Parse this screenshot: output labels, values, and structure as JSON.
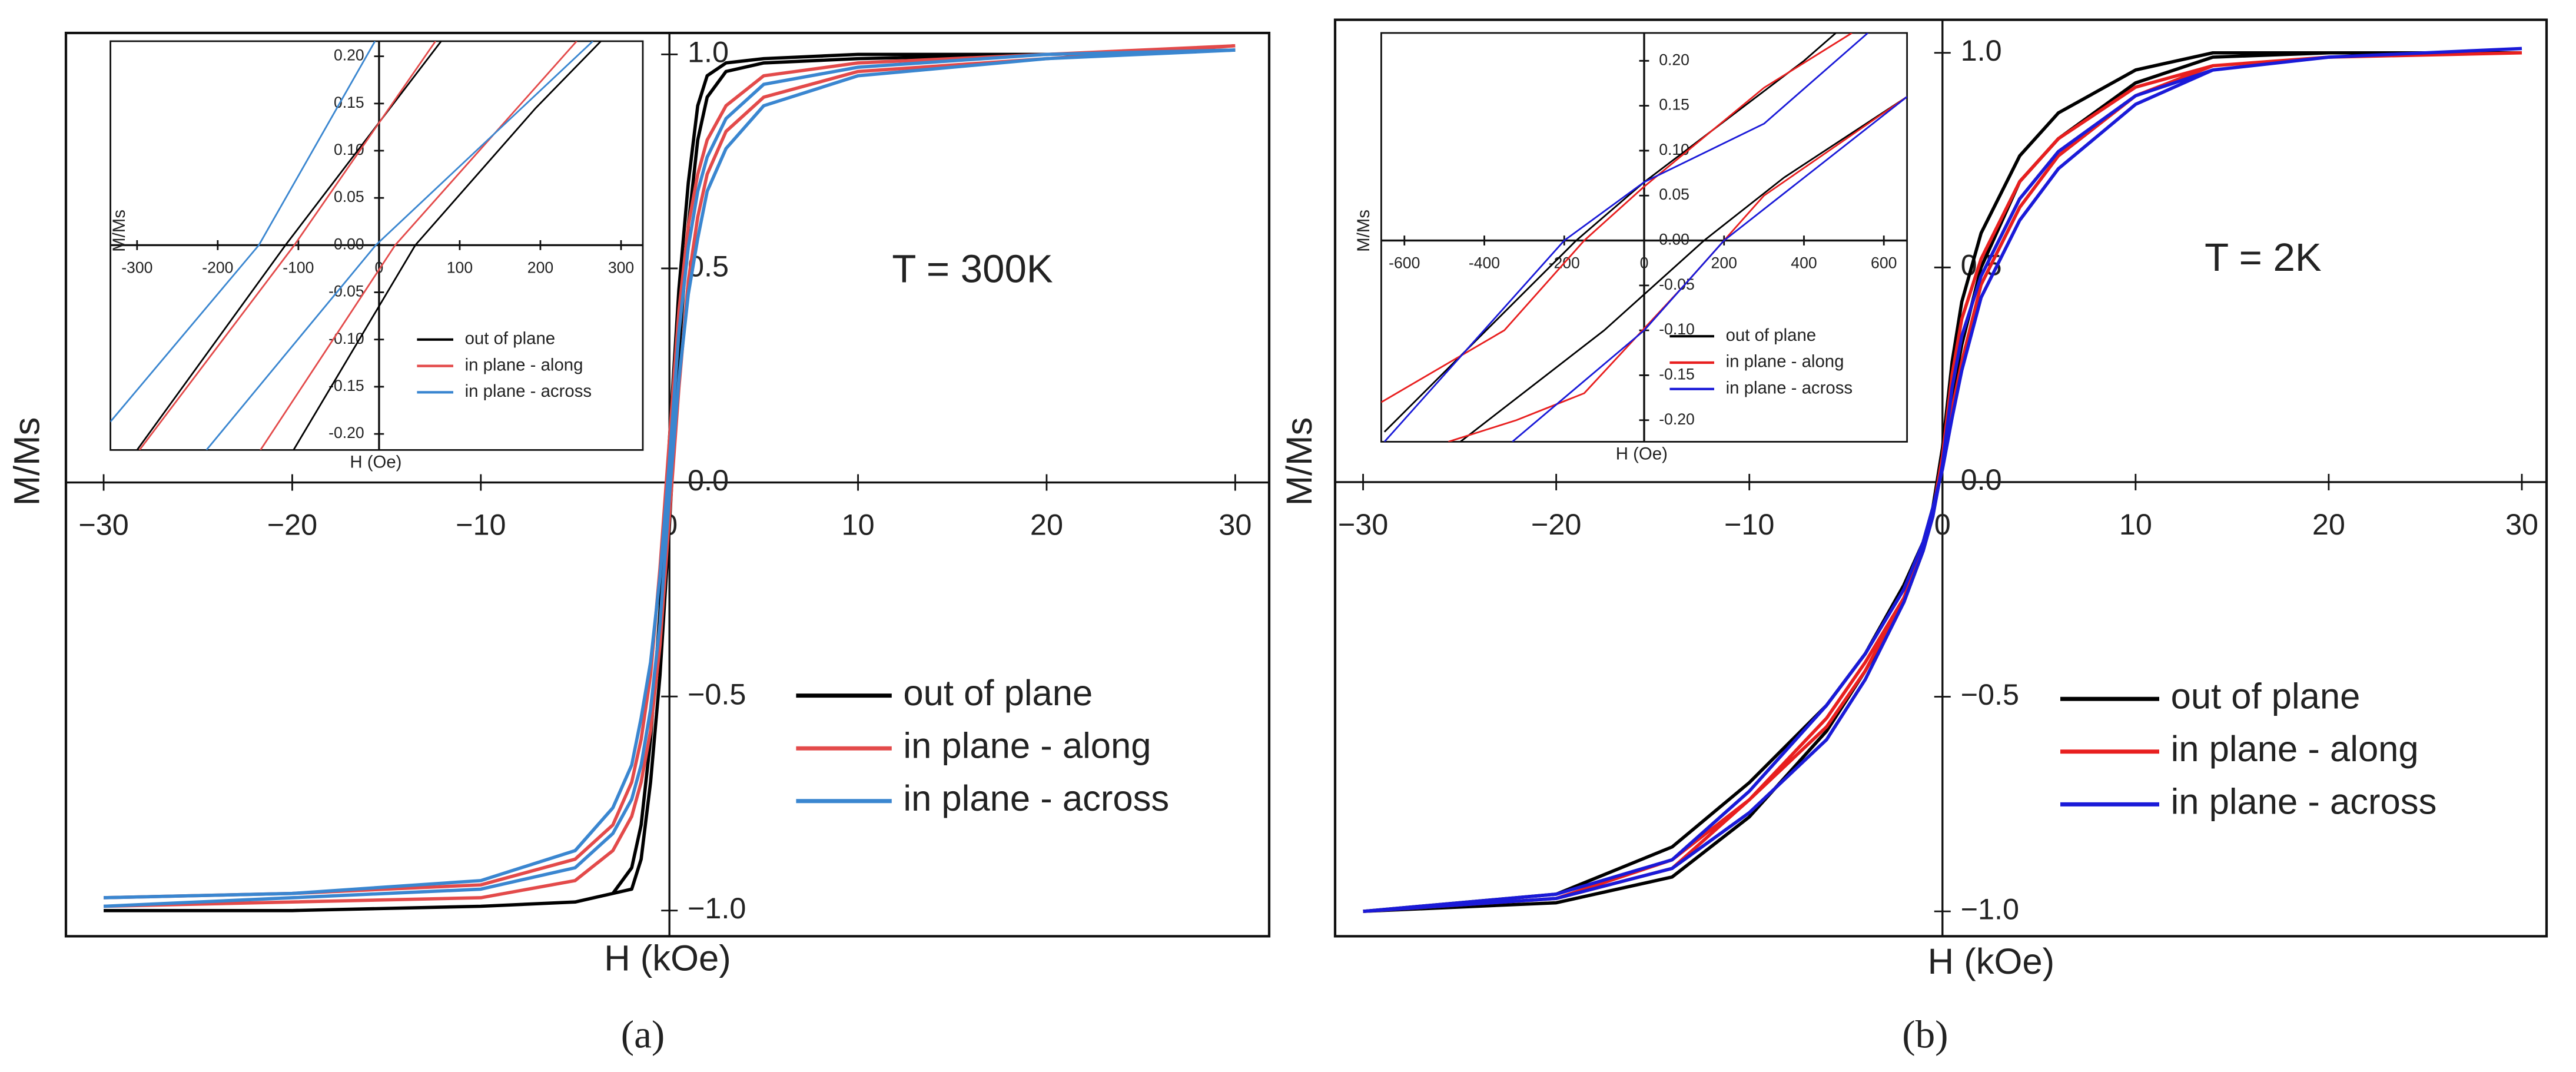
{
  "chart_data": [
    {
      "type": "line",
      "xlabel": "H (kOe)",
      "ylabel": "M/Ms",
      "annotation": "T = 300K",
      "caption": "(a)",
      "legend": "lower right",
      "grid": false,
      "xlim": [
        -32,
        31.8
      ],
      "ylim": [
        -1.06,
        1.05
      ],
      "xticks": [
        {
          "value": -30,
          "label": "−30"
        },
        {
          "value": -20,
          "label": "−20"
        },
        {
          "value": -10,
          "label": "−10"
        },
        0,
        10,
        20,
        30
      ],
      "yticks": [
        {
          "value": -1,
          "label": "−1.0"
        },
        {
          "value": -0.5,
          "label": "−0.5"
        },
        {
          "value": 0,
          "label": "0.0"
        },
        0.5,
        {
          "value": 1,
          "label": "1.0"
        }
      ],
      "series": [
        {
          "name": "out of plane",
          "color": "#000000",
          "x": [
            30,
            20,
            10,
            5,
            3,
            2,
            1.5,
            1,
            0.5,
            0,
            -0.5,
            -1,
            -1.5,
            -2,
            -3,
            -5,
            -10,
            -20,
            -30,
            null,
            -30,
            -20,
            -10,
            -5,
            -3,
            -2,
            -1.5,
            -1,
            -0.5,
            0,
            0.5,
            1,
            1.5,
            2,
            3,
            5,
            10,
            20,
            30
          ],
          "values": [
            1.01,
            1.0,
            1.0,
            0.99,
            0.98,
            0.95,
            0.88,
            0.7,
            0.45,
            0.1,
            -0.3,
            -0.6,
            -0.8,
            -0.9,
            -0.96,
            -0.98,
            -0.99,
            -1.0,
            -1.0,
            null,
            -1.0,
            -1.0,
            -0.99,
            -0.98,
            -0.96,
            -0.95,
            -0.88,
            -0.7,
            -0.45,
            -0.1,
            0.3,
            0.6,
            0.8,
            0.9,
            0.96,
            0.98,
            0.99,
            1.0,
            1.01
          ]
        },
        {
          "name": "in plane - along",
          "color": "#e34a4a",
          "x": [
            30,
            20,
            10,
            5,
            3,
            2,
            1.5,
            1,
            0.5,
            0,
            -0.5,
            -1,
            -1.5,
            -2,
            -3,
            -5,
            -10,
            -20,
            -30,
            null,
            -30,
            -20,
            -10,
            -5,
            -3,
            -2,
            -1.5,
            -1,
            -0.5,
            0,
            0.5,
            1,
            1.5,
            2,
            3,
            5,
            10,
            20,
            30
          ],
          "values": [
            1.02,
            1.0,
            0.98,
            0.95,
            0.88,
            0.8,
            0.72,
            0.6,
            0.4,
            0.1,
            -0.2,
            -0.45,
            -0.6,
            -0.7,
            -0.8,
            -0.88,
            -0.94,
            -0.96,
            -0.97,
            null,
            -0.99,
            -0.98,
            -0.97,
            -0.93,
            -0.86,
            -0.78,
            -0.7,
            -0.58,
            -0.38,
            -0.08,
            0.22,
            0.47,
            0.62,
            0.72,
            0.82,
            0.9,
            0.96,
            0.99,
            1.02
          ]
        },
        {
          "name": "in plane - across",
          "color": "#3a86d0",
          "x": [
            30,
            20,
            10,
            5,
            3,
            2,
            1.5,
            1,
            0.5,
            0,
            -0.5,
            -1,
            -1.5,
            -2,
            -3,
            -5,
            -10,
            -20,
            -30,
            null,
            -30,
            -20,
            -10,
            -5,
            -3,
            -2,
            -1.5,
            -1,
            -0.5,
            0,
            0.5,
            1,
            1.5,
            2,
            3,
            5,
            10,
            20,
            30
          ],
          "values": [
            1.01,
            1.0,
            0.97,
            0.93,
            0.85,
            0.76,
            0.68,
            0.55,
            0.35,
            0.05,
            -0.22,
            -0.42,
            -0.55,
            -0.66,
            -0.76,
            -0.86,
            -0.93,
            -0.96,
            -0.97,
            null,
            -0.99,
            -0.97,
            -0.95,
            -0.9,
            -0.82,
            -0.74,
            -0.66,
            -0.53,
            -0.33,
            -0.03,
            0.24,
            0.44,
            0.57,
            0.68,
            0.78,
            0.88,
            0.95,
            0.99,
            1.01
          ]
        }
      ]
    },
    {
      "type": "line",
      "xlabel": "H (Oe)",
      "ylabel": "M/Ms",
      "legend": "lower right",
      "grid": false,
      "xlim": [
        -333,
        327
      ],
      "ylim": [
        -0.217,
        0.216
      ],
      "xticks": [
        -300,
        -200,
        -100,
        0,
        100,
        200,
        300
      ],
      "yticks": [
        {
          "value": -0.2,
          "label": "-0.20"
        },
        -0.15,
        {
          "value": -0.1,
          "label": "-0.10"
        },
        -0.05,
        {
          "value": 0,
          "label": "0.00"
        },
        0.05,
        {
          "value": 0.1,
          "label": "0.10"
        },
        0.15,
        {
          "value": 0.2,
          "label": "0.20"
        }
      ],
      "series": [
        {
          "name": "out of plane",
          "color": "#000000",
          "x": [
            -300,
            -116,
            77,
            null,
            -106,
            45,
            194,
            275
          ],
          "values": [
            -0.217,
            0,
            0.216,
            null,
            -0.217,
            0,
            0.145,
            0.216
          ]
        },
        {
          "name": "in plane - along",
          "color": "#e34a4a",
          "x": [
            -297,
            -105,
            70,
            null,
            -147,
            20,
            245
          ],
          "values": [
            -0.217,
            0,
            0.216,
            null,
            -0.217,
            0,
            0.216
          ]
        },
        {
          "name": "in plane - across",
          "color": "#3a86d0",
          "x": [
            -333,
            -149,
            -5,
            null,
            -214,
            -4,
            265
          ],
          "values": [
            -0.187,
            0,
            0.216,
            null,
            -0.217,
            0,
            0.216
          ]
        }
      ]
    },
    {
      "type": "line",
      "xlabel": "H (kOe)",
      "ylabel": "M/Ms",
      "annotation": "T = 2K",
      "caption": "(b)",
      "legend": "lower right",
      "grid": false,
      "xlim": [
        -31.45,
        31.28
      ],
      "ylim": [
        -1.058,
        1.077
      ],
      "xticks": [
        {
          "value": -30,
          "label": "−30"
        },
        {
          "value": -20,
          "label": "−20"
        },
        {
          "value": -10,
          "label": "−10"
        },
        0,
        10,
        20,
        30
      ],
      "yticks": [
        {
          "value": -1,
          "label": "−1.0"
        },
        {
          "value": -0.5,
          "label": "−0.5"
        },
        {
          "value": 0,
          "label": "0.0"
        },
        0.5,
        {
          "value": 1,
          "label": "1.0"
        }
      ],
      "series": [
        {
          "name": "out of plane",
          "color": "#000000",
          "x": [
            30,
            20,
            14,
            10,
            6,
            4,
            2,
            1,
            0.5,
            0,
            -0.5,
            -1,
            -2,
            -4,
            -6,
            -10,
            -14,
            -20,
            -30,
            null,
            -30,
            -20,
            -14,
            -10,
            -6,
            -4,
            -2,
            -1,
            -0.5,
            0,
            0.5,
            1,
            2,
            4,
            6,
            10,
            14,
            20,
            30
          ],
          "values": [
            1.0,
            1.0,
            1.0,
            0.96,
            0.86,
            0.76,
            0.58,
            0.42,
            0.28,
            0.08,
            -0.06,
            -0.14,
            -0.24,
            -0.4,
            -0.52,
            -0.7,
            -0.85,
            -0.96,
            -1.0,
            null,
            -1.0,
            -0.98,
            -0.92,
            -0.78,
            -0.58,
            -0.44,
            -0.28,
            -0.16,
            -0.08,
            0.05,
            0.2,
            0.32,
            0.5,
            0.7,
            0.8,
            0.93,
            0.99,
            1.0,
            1.0
          ]
        },
        {
          "name": "in plane - along",
          "color": "#e81f1f",
          "x": [
            30,
            20,
            14,
            10,
            6,
            4,
            2,
            1,
            0.5,
            0,
            -0.5,
            -1,
            -2,
            -4,
            -6,
            -10,
            -14,
            -20,
            -30,
            null,
            -30,
            -20,
            -14,
            -10,
            -6,
            -4,
            -2,
            -1,
            -0.5,
            0,
            0.5,
            1,
            2,
            4,
            6,
            10,
            14,
            20,
            30
          ],
          "values": [
            1.0,
            0.99,
            0.97,
            0.92,
            0.8,
            0.7,
            0.52,
            0.38,
            0.25,
            0.06,
            -0.07,
            -0.15,
            -0.27,
            -0.44,
            -0.57,
            -0.74,
            -0.88,
            -0.97,
            -1.0,
            null,
            -1.0,
            -0.97,
            -0.9,
            -0.74,
            -0.55,
            -0.42,
            -0.27,
            -0.15,
            -0.07,
            0.04,
            0.17,
            0.28,
            0.46,
            0.64,
            0.76,
            0.9,
            0.97,
            0.99,
            1.0
          ]
        },
        {
          "name": "in plane - across",
          "color": "#1a1ad8",
          "x": [
            30,
            20,
            14,
            10,
            6,
            4,
            2,
            1,
            0.5,
            0,
            -0.5,
            -1,
            -2,
            -4,
            -6,
            -10,
            -14,
            -20,
            -30,
            null,
            -30,
            -20,
            -14,
            -10,
            -6,
            -4,
            -2,
            -1,
            -0.5,
            0,
            0.5,
            1,
            2,
            4,
            6,
            10,
            14,
            20,
            30
          ],
          "values": [
            1.01,
            0.99,
            0.96,
            0.9,
            0.77,
            0.66,
            0.48,
            0.34,
            0.22,
            0.04,
            -0.08,
            -0.16,
            -0.28,
            -0.46,
            -0.6,
            -0.77,
            -0.9,
            -0.97,
            -1.0,
            null,
            -1.0,
            -0.96,
            -0.88,
            -0.72,
            -0.52,
            -0.4,
            -0.25,
            -0.14,
            -0.06,
            0.03,
            0.15,
            0.26,
            0.43,
            0.61,
            0.73,
            0.88,
            0.96,
            0.99,
            1.01
          ]
        }
      ]
    },
    {
      "type": "line",
      "xlabel": "H (Oe)",
      "ylabel": "M/Ms",
      "legend": "lower right",
      "grid": false,
      "xlim": [
        -658,
        658
      ],
      "ylim": [
        -0.224,
        0.231
      ],
      "xticks": [
        -600,
        -400,
        -200,
        0,
        200,
        400,
        600
      ],
      "yticks": [
        {
          "value": -0.2,
          "label": "-0.20"
        },
        -0.15,
        {
          "value": -0.1,
          "label": "-0.10"
        },
        -0.05,
        {
          "value": 0,
          "label": "0.00"
        },
        0.05,
        {
          "value": 0.1,
          "label": "0.10"
        },
        0.15,
        {
          "value": 0.2,
          "label": "0.20"
        }
      ],
      "series": [
        {
          "name": "out of plane",
          "color": "#000000",
          "x": [
            -650,
            -170,
            0,
            400,
            480,
            null,
            -460,
            -100,
            150,
            350,
            658
          ],
          "values": [
            -0.213,
            0,
            0.065,
            0.2,
            0.231,
            null,
            -0.224,
            -0.1,
            0,
            0.07,
            0.16
          ]
        },
        {
          "name": "in plane - along",
          "color": "#e81f1f",
          "x": [
            -658,
            -350,
            -150,
            0,
            300,
            520,
            null,
            -490,
            -320,
            -150,
            100,
            300,
            658
          ],
          "values": [
            -0.18,
            -0.1,
            0,
            0.06,
            0.17,
            0.231,
            null,
            -0.224,
            -0.2,
            -0.17,
            -0.05,
            0.05,
            0.16
          ]
        },
        {
          "name": "in plane - across",
          "color": "#1a1ad8",
          "x": [
            -650,
            -200,
            0,
            300,
            560,
            null,
            -330,
            0,
            200,
            658
          ],
          "values": [
            -0.224,
            0,
            0.065,
            0.13,
            0.231,
            null,
            -0.224,
            -0.1,
            0,
            0.16
          ]
        }
      ]
    }
  ]
}
